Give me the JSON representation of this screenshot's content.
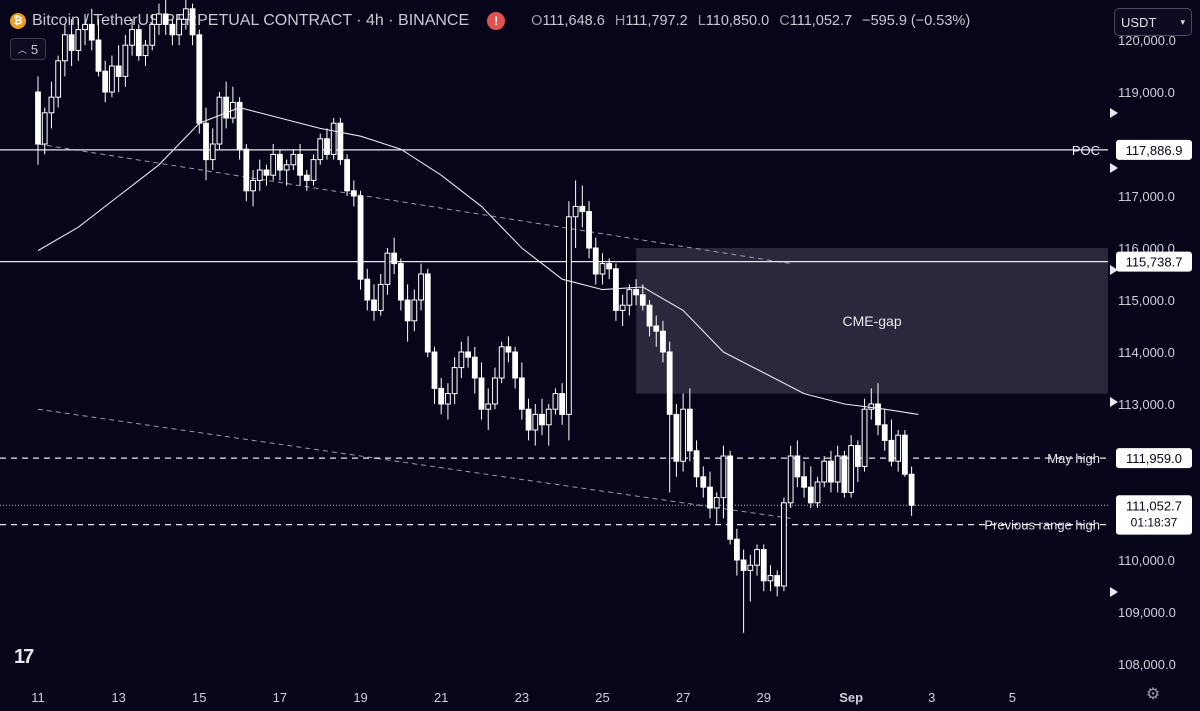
{
  "header": {
    "symbol": "Bitcoin / TetherUS PERPETUAL CONTRACT · 4h · BINANCE",
    "coin_icon": "bitcoin-icon",
    "alert_icon": "exclamation-icon",
    "ohlc": {
      "o_label": "O",
      "o": "111,648.6",
      "h_label": "H",
      "h": "111,797.2",
      "l_label": "L",
      "l": "110,850.0",
      "c_label": "C",
      "c": "111,052.7",
      "change": "−595.9 (−0.53%)"
    },
    "indicator_count": "5",
    "currency": "USDT"
  },
  "colors": {
    "background": "#06051a",
    "candles": "#ffffff",
    "gap_zone": "#35344a",
    "axis_text": "#d0d0d8"
  },
  "chart_data": {
    "type": "candlestick",
    "title": "Bitcoin / TetherUS PERPETUAL CONTRACT · 4h · BINANCE",
    "y_axis": {
      "range": [
        107500,
        120300
      ],
      "ticks": [
        "108,000.0",
        "109,000.0",
        "110,000.0",
        "111,000.0",
        "112,000.0",
        "113,000.0",
        "114,000.0",
        "115,000.0",
        "116,000.0",
        "117,000.0",
        "118,000.0",
        "119,000.0",
        "120,000.0"
      ],
      "tick_values": [
        108000,
        109000,
        110000,
        111000,
        112000,
        113000,
        114000,
        115000,
        116000,
        117000,
        118000,
        119000,
        120000
      ]
    },
    "x_axis": {
      "ticks": [
        "11",
        "13",
        "15",
        "17",
        "19",
        "21",
        "23",
        "25",
        "27",
        "29",
        "Sep",
        "3",
        "5"
      ],
      "tick_index": [
        0,
        12,
        24,
        36,
        48,
        60,
        72,
        84,
        96,
        108,
        121,
        133,
        145
      ]
    },
    "candles": [
      [
        119000,
        119300,
        117600,
        118000
      ],
      [
        118000,
        118700,
        117800,
        118600
      ],
      [
        118600,
        119200,
        118300,
        118900
      ],
      [
        118900,
        119700,
        118700,
        119600
      ],
      [
        119600,
        120300,
        119300,
        120100
      ],
      [
        120100,
        120400,
        119500,
        119800
      ],
      [
        119800,
        120400,
        119600,
        120200
      ],
      [
        120200,
        120500,
        119900,
        120300
      ],
      [
        120300,
        120600,
        119800,
        120000
      ],
      [
        120000,
        120400,
        119300,
        119400
      ],
      [
        119400,
        119600,
        118800,
        119000
      ],
      [
        119000,
        119700,
        118900,
        119500
      ],
      [
        119500,
        119900,
        119000,
        119300
      ],
      [
        119300,
        120100,
        119100,
        119900
      ],
      [
        119900,
        120400,
        119700,
        120200
      ],
      [
        120200,
        120300,
        119600,
        119700
      ],
      [
        119700,
        120000,
        119500,
        119900
      ],
      [
        119900,
        120500,
        119800,
        120300
      ],
      [
        120300,
        120700,
        120100,
        120500
      ],
      [
        120500,
        120800,
        120100,
        120300
      ],
      [
        120300,
        120400,
        119900,
        120100
      ],
      [
        120100,
        120500,
        119900,
        120400
      ],
      [
        120400,
        120800,
        120200,
        120600
      ],
      [
        120600,
        120700,
        119900,
        120100
      ],
      [
        120100,
        120200,
        118200,
        118400
      ],
      [
        118400,
        118700,
        117300,
        117700
      ],
      [
        117700,
        118300,
        117500,
        118000
      ],
      [
        118000,
        119000,
        117900,
        118900
      ],
      [
        118900,
        119200,
        118300,
        118500
      ],
      [
        118500,
        119100,
        118400,
        118800
      ],
      [
        118800,
        118900,
        117700,
        117900
      ],
      [
        117900,
        118000,
        116900,
        117100
      ],
      [
        117100,
        117500,
        116800,
        117300
      ],
      [
        117300,
        117700,
        117100,
        117500
      ],
      [
        117500,
        117600,
        117200,
        117400
      ],
      [
        117400,
        118000,
        117300,
        117800
      ],
      [
        117800,
        117900,
        117300,
        117500
      ],
      [
        117500,
        117700,
        117200,
        117600
      ],
      [
        117600,
        117900,
        117500,
        117800
      ],
      [
        117800,
        118000,
        117200,
        117400
      ],
      [
        117400,
        117500,
        117100,
        117300
      ],
      [
        117300,
        117800,
        117200,
        117700
      ],
      [
        117700,
        118200,
        117600,
        118100
      ],
      [
        118100,
        118300,
        117700,
        117800
      ],
      [
        117800,
        118500,
        117700,
        118400
      ],
      [
        118400,
        118500,
        117600,
        117700
      ],
      [
        117700,
        117800,
        117000,
        117100
      ],
      [
        117100,
        117300,
        116800,
        117000
      ],
      [
        117000,
        117100,
        115200,
        115400
      ],
      [
        115400,
        115600,
        114800,
        115000
      ],
      [
        115000,
        115300,
        114600,
        114800
      ],
      [
        114800,
        115500,
        114700,
        115300
      ],
      [
        115300,
        116000,
        115100,
        115900
      ],
      [
        115900,
        116200,
        115500,
        115700
      ],
      [
        115700,
        115800,
        114800,
        115000
      ],
      [
        115000,
        115300,
        114200,
        114600
      ],
      [
        114600,
        115200,
        114400,
        115000
      ],
      [
        115000,
        115700,
        114800,
        115500
      ],
      [
        115500,
        115600,
        113900,
        114000
      ],
      [
        114000,
        114100,
        113000,
        113300
      ],
      [
        113300,
        113500,
        112800,
        113000
      ],
      [
        113000,
        113400,
        112700,
        113200
      ],
      [
        113200,
        113900,
        113000,
        113700
      ],
      [
        113700,
        114200,
        113500,
        114000
      ],
      [
        114000,
        114300,
        113700,
        113900
      ],
      [
        113900,
        114100,
        113200,
        113500
      ],
      [
        113500,
        113800,
        112700,
        112900
      ],
      [
        112900,
        113300,
        112500,
        113000
      ],
      [
        113000,
        113700,
        112900,
        113500
      ],
      [
        113500,
        114200,
        113400,
        114100
      ],
      [
        114100,
        114300,
        113800,
        114000
      ],
      [
        114000,
        114100,
        113300,
        113500
      ],
      [
        113500,
        113800,
        112700,
        112900
      ],
      [
        112900,
        113100,
        112300,
        112500
      ],
      [
        112500,
        113000,
        112200,
        112800
      ],
      [
        112800,
        113100,
        112400,
        112600
      ],
      [
        112600,
        113000,
        112200,
        112900
      ],
      [
        112900,
        113300,
        112800,
        113200
      ],
      [
        113200,
        113400,
        112600,
        112800
      ],
      [
        112800,
        116900,
        112300,
        116600
      ],
      [
        116600,
        117300,
        116000,
        116800
      ],
      [
        116800,
        117200,
        116400,
        116700
      ],
      [
        116700,
        116900,
        115800,
        116000
      ],
      [
        116000,
        116200,
        115300,
        115500
      ],
      [
        115500,
        115900,
        115300,
        115700
      ],
      [
        115700,
        115800,
        115400,
        115600
      ],
      [
        115600,
        115700,
        114600,
        114800
      ],
      [
        114800,
        115100,
        114500,
        114900
      ],
      [
        114900,
        115300,
        114700,
        115200
      ],
      [
        115200,
        115400,
        114900,
        115100
      ],
      [
        115100,
        115300,
        114800,
        114900
      ],
      [
        114900,
        115000,
        114300,
        114500
      ],
      [
        114500,
        114700,
        114100,
        114400
      ],
      [
        114400,
        114600,
        113800,
        114000
      ],
      [
        114000,
        114200,
        111300,
        112800
      ],
      [
        112800,
        113000,
        111600,
        111900
      ],
      [
        111900,
        113200,
        111700,
        112900
      ],
      [
        112900,
        113300,
        111900,
        112100
      ],
      [
        112100,
        112300,
        111400,
        111600
      ],
      [
        111600,
        111800,
        111200,
        111400
      ],
      [
        111400,
        111700,
        110800,
        111000
      ],
      [
        111000,
        111300,
        110700,
        111200
      ],
      [
        111200,
        112200,
        110800,
        112000
      ],
      [
        112000,
        112100,
        110300,
        110400
      ],
      [
        110400,
        110600,
        109700,
        110000
      ],
      [
        110000,
        110200,
        108600,
        109800
      ],
      [
        109800,
        110100,
        109200,
        109900
      ],
      [
        109900,
        110300,
        109700,
        110200
      ],
      [
        110200,
        110300,
        109400,
        109600
      ],
      [
        109600,
        109900,
        109400,
        109700
      ],
      [
        109700,
        109800,
        109300,
        109500
      ],
      [
        109500,
        111200,
        109400,
        111100
      ],
      [
        111100,
        112200,
        111000,
        112000
      ],
      [
        112000,
        112300,
        111400,
        111600
      ],
      [
        111600,
        111900,
        111200,
        111400
      ],
      [
        111400,
        111800,
        111000,
        111100
      ],
      [
        111100,
        111600,
        111000,
        111500
      ],
      [
        111500,
        112000,
        111400,
        111900
      ],
      [
        111900,
        112100,
        111300,
        111500
      ],
      [
        111500,
        112200,
        111300,
        112000
      ],
      [
        112000,
        112100,
        111200,
        111300
      ],
      [
        111300,
        112400,
        111200,
        112200
      ],
      [
        112200,
        112300,
        111500,
        111800
      ],
      [
        111800,
        113100,
        111700,
        112900
      ],
      [
        112900,
        113300,
        112700,
        113000
      ],
      [
        113000,
        113400,
        112400,
        112600
      ],
      [
        112600,
        112900,
        112100,
        112300
      ],
      [
        112300,
        112700,
        111800,
        111900
      ],
      [
        111900,
        112500,
        111700,
        112400
      ],
      [
        112400,
        112500,
        111600,
        111650
      ],
      [
        111648.6,
        111797.2,
        110850.0,
        111052.7
      ]
    ],
    "moving_average": [
      [
        0,
        115950
      ],
      [
        6,
        116400
      ],
      [
        12,
        117000
      ],
      [
        18,
        117600
      ],
      [
        24,
        118400
      ],
      [
        30,
        118700
      ],
      [
        36,
        118500
      ],
      [
        42,
        118300
      ],
      [
        48,
        118150
      ],
      [
        54,
        117900
      ],
      [
        60,
        117400
      ],
      [
        66,
        116800
      ],
      [
        72,
        116000
      ],
      [
        78,
        115400
      ],
      [
        84,
        115200
      ],
      [
        90,
        115250
      ],
      [
        96,
        114800
      ],
      [
        102,
        114000
      ],
      [
        108,
        113600
      ],
      [
        114,
        113200
      ],
      [
        120,
        113000
      ],
      [
        126,
        112900
      ],
      [
        131,
        112800
      ]
    ],
    "trendlines": [
      {
        "style": "dashed",
        "points": [
          [
            0,
            118000
          ],
          [
            112,
            115700
          ]
        ]
      },
      {
        "style": "dashed",
        "points": [
          [
            0,
            112900
          ],
          [
            112,
            110800
          ]
        ]
      }
    ],
    "horizontal_levels": [
      {
        "label": "POC",
        "value": 117886.9,
        "value_label": "117,886.9",
        "style": "solid"
      },
      {
        "label": "",
        "value": 115738.7,
        "value_label": "115,738.7",
        "style": "solid"
      },
      {
        "label": "May high",
        "value": 111959.0,
        "value_label": "111,959.0",
        "style": "dashed"
      },
      {
        "label": "Previous range high",
        "value": 110680.7,
        "value_label": "110,680.7",
        "style": "dashed"
      }
    ],
    "last_price": {
      "value": 111052.7,
      "value_label": "111,052.7",
      "countdown": "01:18:37"
    },
    "zones": [
      {
        "label": "CME-gap",
        "x_start": 89,
        "x_end": 170,
        "y_low": 113200,
        "y_high": 116000
      }
    ]
  }
}
